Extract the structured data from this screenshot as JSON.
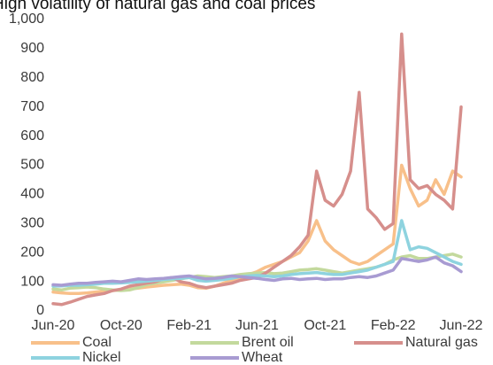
{
  "chart_data": {
    "type": "line",
    "title": "High volatility of natural gas and coal prices",
    "categories": [
      "Jun-20",
      null,
      null,
      null,
      null,
      null,
      null,
      null,
      "Oct-20",
      null,
      null,
      null,
      null,
      null,
      null,
      null,
      "Feb-21",
      null,
      null,
      null,
      null,
      null,
      null,
      null,
      "Jun-21",
      null,
      null,
      null,
      null,
      null,
      null,
      null,
      "Oct-21",
      null,
      null,
      null,
      null,
      null,
      null,
      null,
      "Feb-22",
      null,
      null,
      null,
      null,
      null,
      null,
      null,
      "Jun-22"
    ],
    "series": [
      {
        "name": "Coal",
        "color": "#f8c08a",
        "values": [
          65,
          62,
          60,
          60,
          62,
          65,
          68,
          70,
          72,
          75,
          78,
          82,
          85,
          88,
          90,
          92,
          88,
          80,
          78,
          85,
          95,
          105,
          115,
          125,
          135,
          150,
          160,
          170,
          185,
          200,
          240,
          310,
          240,
          210,
          190,
          170,
          160,
          170,
          190,
          210,
          230,
          500,
          420,
          360,
          380,
          450,
          400,
          480,
          460
        ]
      },
      {
        "name": "Brent oil",
        "color": "#c3d99d",
        "values": [
          75,
          72,
          78,
          80,
          82,
          80,
          75,
          72,
          70,
          72,
          80,
          90,
          95,
          100,
          105,
          110,
          115,
          120,
          118,
          115,
          118,
          120,
          125,
          128,
          130,
          132,
          128,
          130,
          135,
          140,
          142,
          145,
          140,
          135,
          130,
          135,
          140,
          145,
          150,
          160,
          175,
          185,
          190,
          180,
          180,
          185,
          190,
          195,
          185
        ]
      },
      {
        "name": "Natural gas",
        "color": "#d68f8c",
        "values": [
          25,
          22,
          30,
          40,
          50,
          55,
          60,
          70,
          75,
          85,
          90,
          95,
          100,
          110,
          115,
          100,
          95,
          85,
          80,
          85,
          90,
          95,
          105,
          110,
          115,
          130,
          150,
          170,
          190,
          220,
          260,
          480,
          380,
          360,
          400,
          480,
          750,
          350,
          320,
          280,
          300,
          950,
          450,
          420,
          430,
          400,
          380,
          350,
          700
        ]
      },
      {
        "name": "Nickel",
        "color": "#8ed3df",
        "values": [
          85,
          86,
          88,
          88,
          90,
          92,
          95,
          95,
          96,
          98,
          100,
          102,
          105,
          108,
          110,
          112,
          115,
          105,
          102,
          105,
          108,
          112,
          118,
          120,
          122,
          120,
          118,
          120,
          125,
          128,
          130,
          132,
          128,
          125,
          125,
          130,
          135,
          140,
          150,
          160,
          170,
          310,
          210,
          220,
          215,
          200,
          185,
          170,
          160
        ]
      },
      {
        "name": "Wheat",
        "color": "#a89bd2",
        "values": [
          90,
          88,
          92,
          95,
          95,
          98,
          100,
          102,
          100,
          105,
          110,
          108,
          110,
          112,
          115,
          118,
          120,
          115,
          110,
          112,
          115,
          120,
          118,
          115,
          112,
          108,
          105,
          110,
          112,
          108,
          110,
          112,
          108,
          110,
          110,
          115,
          118,
          115,
          120,
          130,
          140,
          180,
          175,
          170,
          175,
          185,
          165,
          155,
          135
        ]
      }
    ],
    "ylim": [
      0,
      1000
    ],
    "yticks": [
      0,
      100,
      200,
      300,
      400,
      500,
      600,
      700,
      800,
      900,
      {
        "value": 1000,
        "label": "1,000"
      }
    ],
    "grid": false,
    "legend": "bottom"
  }
}
